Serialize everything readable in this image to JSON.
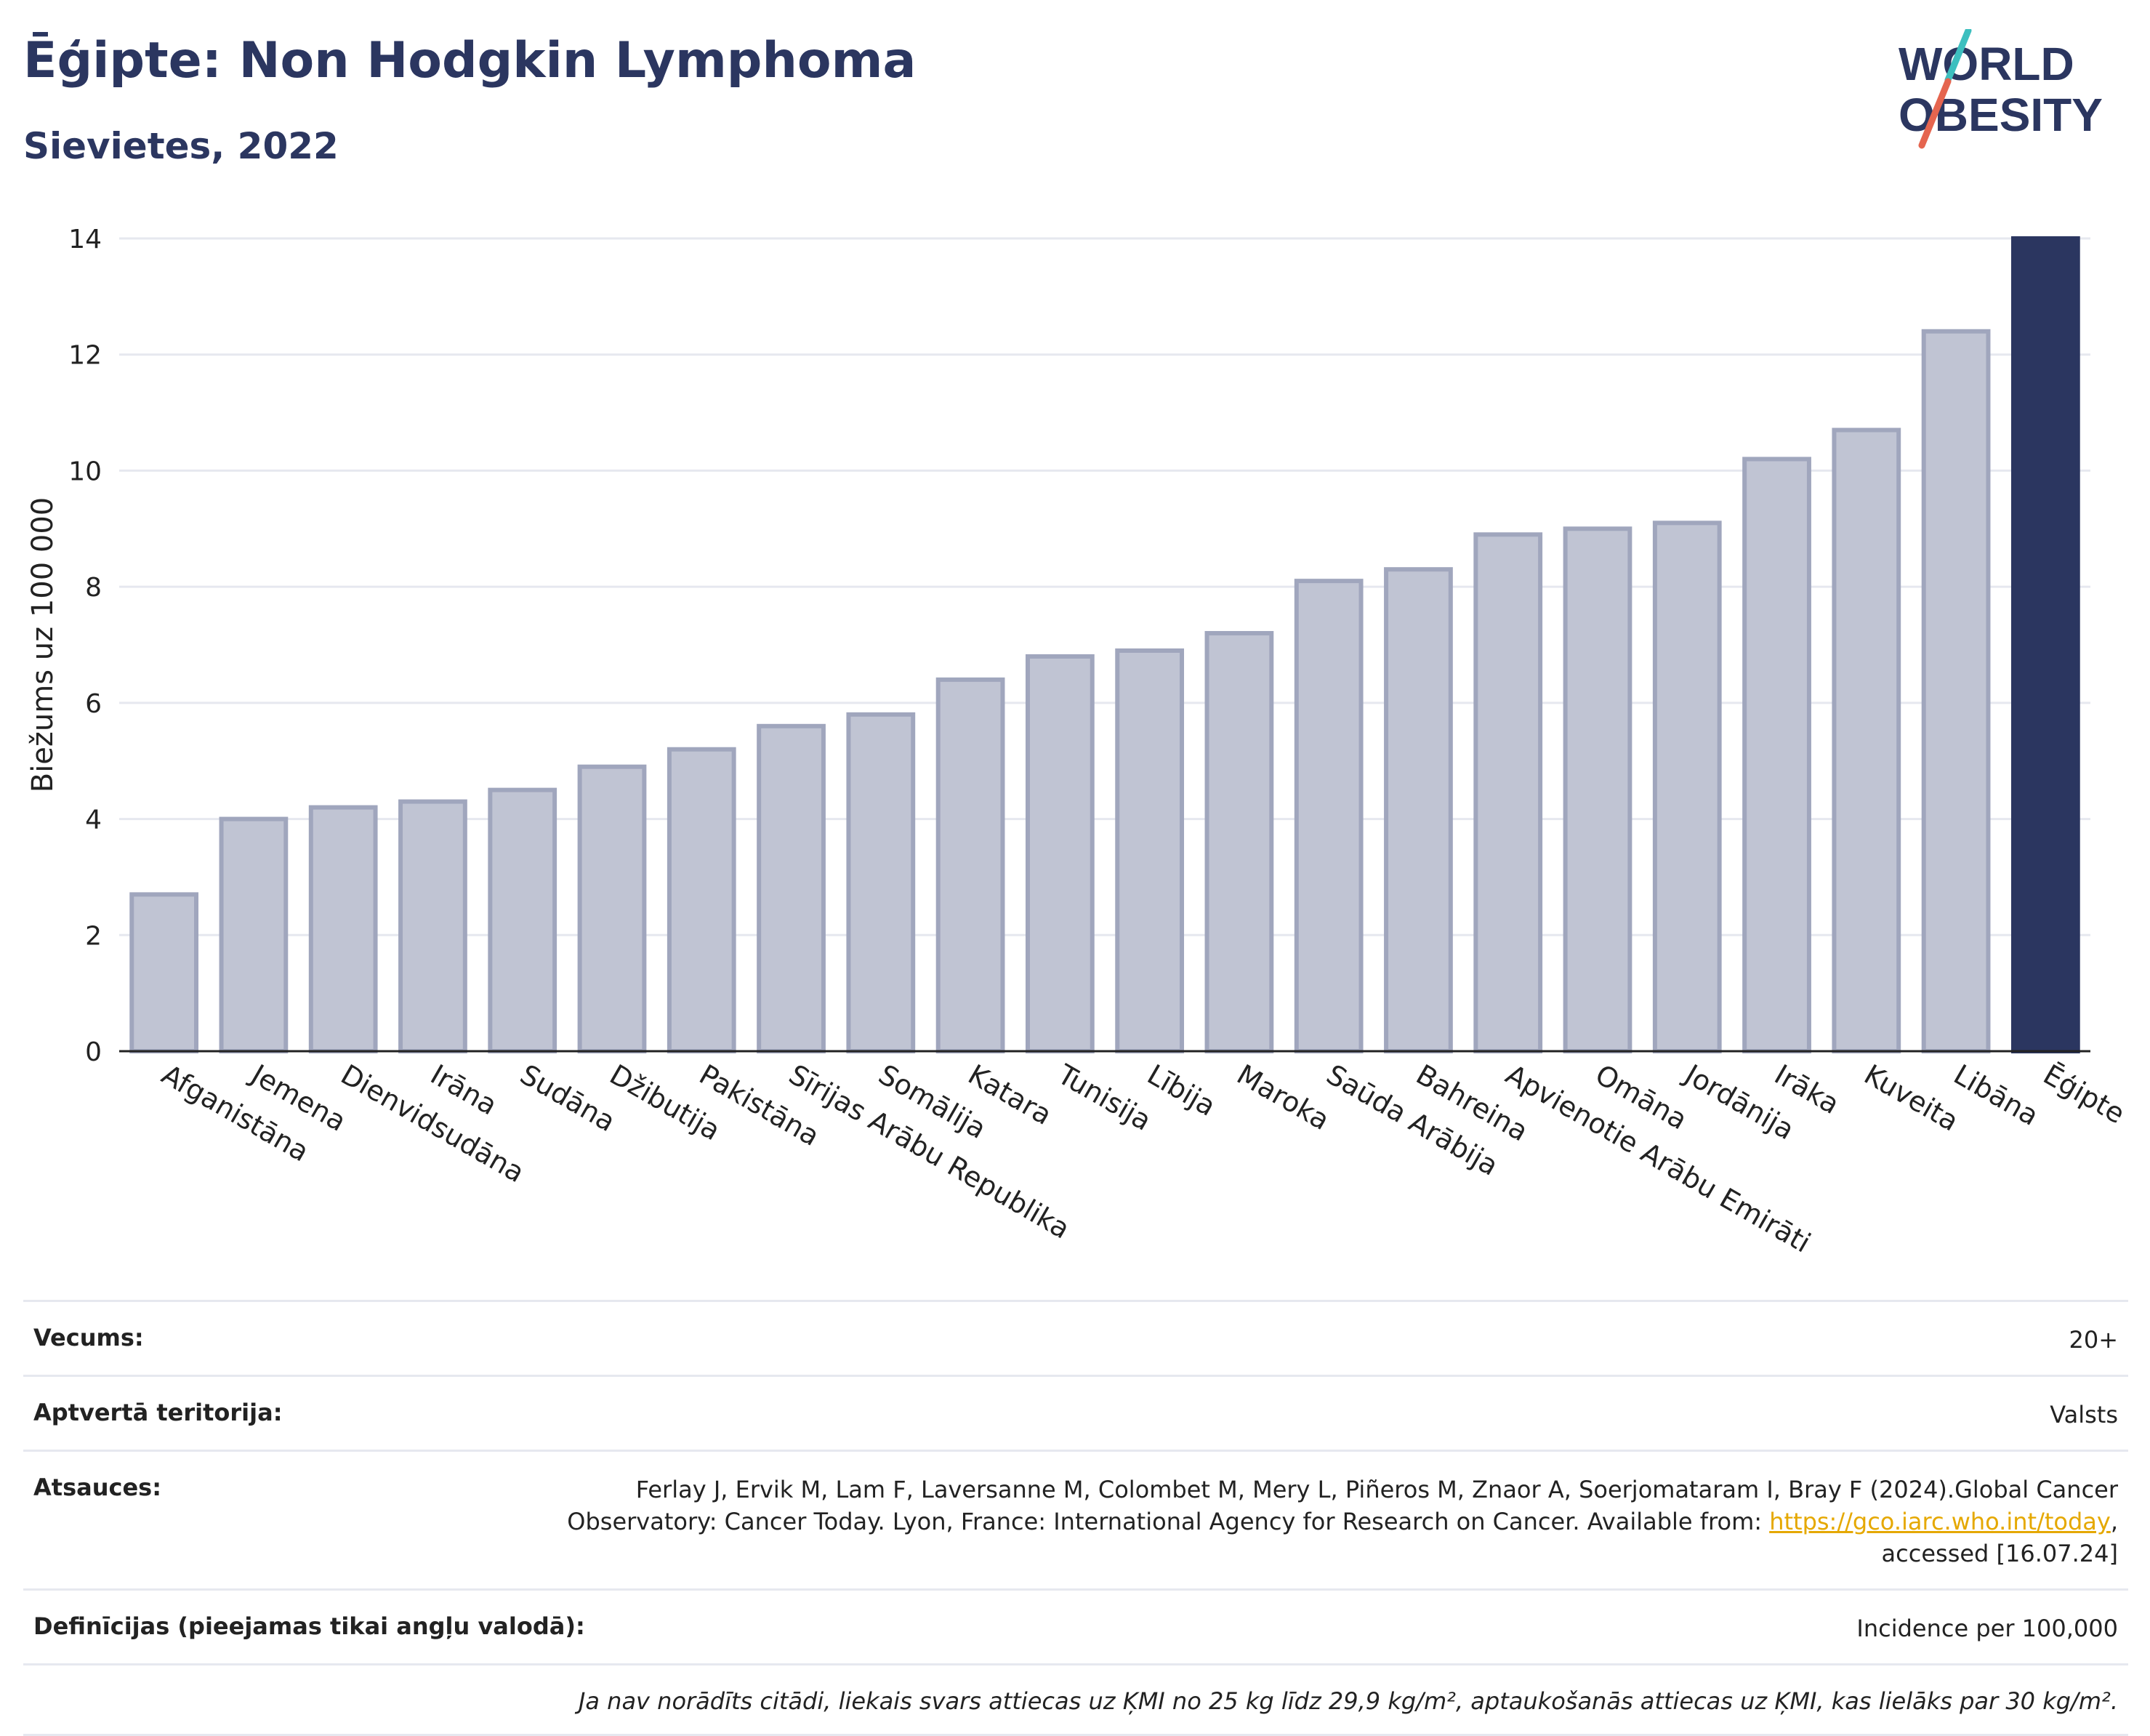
{
  "header": {
    "title": "Ēģipte: Non Hodgkin Lymphoma",
    "subtitle": "Sievietes, 2022"
  },
  "logo": {
    "line1": "WORLD",
    "line2": "OBESITY",
    "icon": "world-obesity-logo"
  },
  "colors": {
    "highlight": "#2b3660",
    "bar": "#c0c4d3",
    "bar_border": "#a0a6bd",
    "accent_teal": "#3dbfbf",
    "accent_red": "#e5654f"
  },
  "chart_data": {
    "type": "bar",
    "ylabel": "Biežums uz 100 000",
    "ylim": [
      0,
      14
    ],
    "yticks": [
      0,
      2,
      4,
      6,
      8,
      10,
      12,
      14
    ],
    "categories": [
      "Afganistāna",
      "Jemena",
      "Dienvidsudāna",
      "Irāna",
      "Sudāna",
      "Džibutija",
      "Pakistāna",
      "Sīrijas Arābu Republika",
      "Somālija",
      "Katara",
      "Tunisija",
      "Lībija",
      "Maroka",
      "Saūda Arābija",
      "Bahreina",
      "Apvienotie Arābu Emirāti",
      "Omāna",
      "Jordānija",
      "Irāka",
      "Kuveita",
      "Libāna",
      "Ēģipte"
    ],
    "values": [
      2.7,
      4.0,
      4.2,
      4.3,
      4.5,
      4.9,
      5.2,
      5.6,
      5.8,
      6.4,
      6.8,
      6.9,
      7.2,
      8.1,
      8.3,
      8.9,
      9.0,
      9.1,
      10.2,
      10.7,
      12.4,
      14.0
    ],
    "highlight": "Ēģipte",
    "grid": true
  },
  "meta": {
    "age_label": "Vecums:",
    "age_value": "20+",
    "territory_label": "Aptvertā teritorija:",
    "territory_value": "Valsts",
    "refs_label": "Atsauces:",
    "refs_text1": "Ferlay J, Ervik M, Lam F, Laversanne M, Colombet M, Mery L, Piñeros M, Znaor A, Soerjomataram I, Bray F (2024).Global Cancer Observatory: Cancer Today. Lyon, France: International Agency for Research on Cancer. Available from: ",
    "refs_link": "https://gco.iarc.who.int/today",
    "refs_text2": ", accessed [16.07.24]",
    "defs_label": "Definīcijas (pieejamas tikai angļu valodā):",
    "defs_value": "Incidence per 100,000",
    "note": "Ja nav norādīts citādi, liekais svars attiecas uz ĶMI no 25 kg līdz 29,9 kg/m², aptaukošanās attiecas uz ĶMI, kas lielāks par 30 kg/m²."
  }
}
